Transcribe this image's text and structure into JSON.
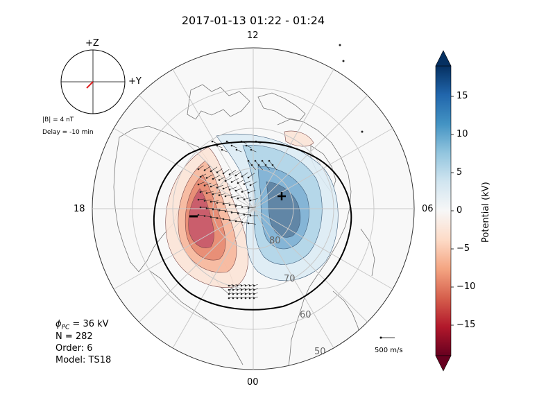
{
  "title": "2017-01-13 01:22 - 01:24",
  "clock_labels": {
    "top": "12",
    "bottom": "00",
    "left": "18",
    "right": "06"
  },
  "imf": {
    "plus_z": "+Z",
    "plus_y": "+Y",
    "b_mag": "|B| = 4 nT",
    "delay": "Delay = -10 min",
    "vector_color": "#e11d1d"
  },
  "info": {
    "phi_label": "ϕ",
    "phi_sub": "PC",
    "phi_value": " = 36 kV",
    "n": "N = 282",
    "order": "Order: 6",
    "model": "Model: TS18"
  },
  "ref_vector_label": "500 m/s",
  "colorbar": {
    "label": "Potential (kV)",
    "ticks": [
      "15",
      "10",
      "5",
      "0",
      "−5",
      "−10",
      "−15"
    ],
    "tick_values": [
      15,
      10,
      5,
      0,
      -5,
      -10,
      -15
    ],
    "range": [
      -19,
      19
    ],
    "colors": [
      "#67001f",
      "#b2182b",
      "#d6604d",
      "#f4a582",
      "#fddbc7",
      "#f7f7f7",
      "#d1e5f0",
      "#92c5de",
      "#4393c3",
      "#2166ac",
      "#053061"
    ]
  },
  "chart_data": {
    "type": "polar_contour",
    "title": "2017-01-13 01:22 - 01:24",
    "latitude_rings": [
      80,
      70,
      60,
      50
    ],
    "latitude_labels": [
      "80",
      "70",
      "60",
      "50"
    ],
    "mlt_labels": [
      "12",
      "06",
      "00",
      "18"
    ],
    "cross_polar_cap_potential_kV": 36,
    "n_vectors": 282,
    "fit_order": 6,
    "model": "TS18",
    "imf_magnitude_nT": 4,
    "imf_delay_min": -10,
    "potential_max_kV": 18,
    "potential_min_kV": -18,
    "max_marker": "+",
    "min_marker": "−",
    "potential_unit": "kV"
  }
}
